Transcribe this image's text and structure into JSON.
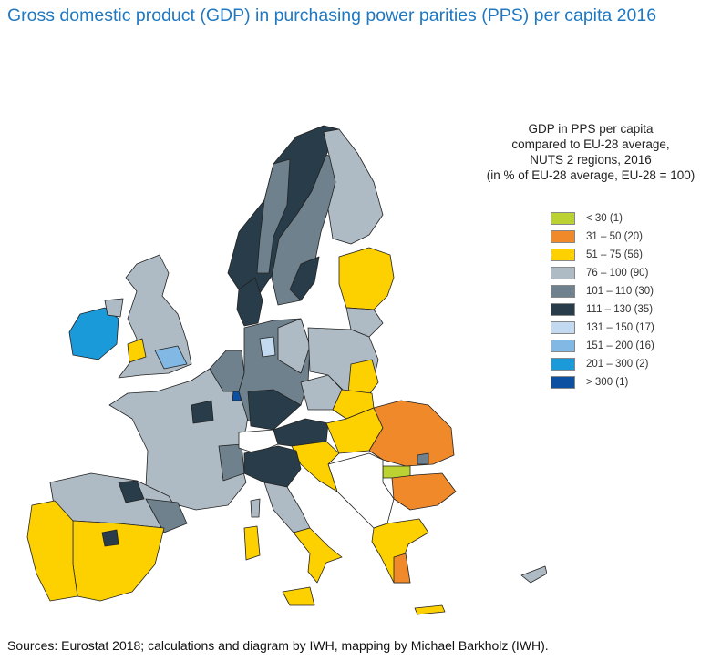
{
  "title": "Gross domestic product (GDP) in purchasing power parities (PPS) per capita 2016",
  "legend": {
    "title_lines": [
      "GDP in PPS per capita",
      "compared to EU-28 average,",
      "NUTS 2 regions, 2016",
      "(in % of EU-28 average, EU-28 = 100)"
    ],
    "classes": [
      {
        "label": "< 30 (1)",
        "color": "#bcd232"
      },
      {
        "label": "31 – 50 (20)",
        "color": "#f0892a"
      },
      {
        "label": "51 – 75 (56)",
        "color": "#fdd000"
      },
      {
        "label": "76 – 100 (90)",
        "color": "#aebbc4"
      },
      {
        "label": "101 – 110 (30)",
        "color": "#6f818d"
      },
      {
        "label": "111 – 130 (35)",
        "color": "#283c49"
      },
      {
        "label": "131 – 150 (17)",
        "color": "#c2d9f0"
      },
      {
        "label": "151 – 200 (16)",
        "color": "#82b9e4"
      },
      {
        "label": "201 – 300 (2)",
        "color": "#1a9ad9"
      },
      {
        "label": "> 300 (1)",
        "color": "#0d4fa0"
      }
    ]
  },
  "source": "Sources: Eurostat 2018; calculations and diagram by IWH, mapping by Michael Barkholz (IWH)."
}
